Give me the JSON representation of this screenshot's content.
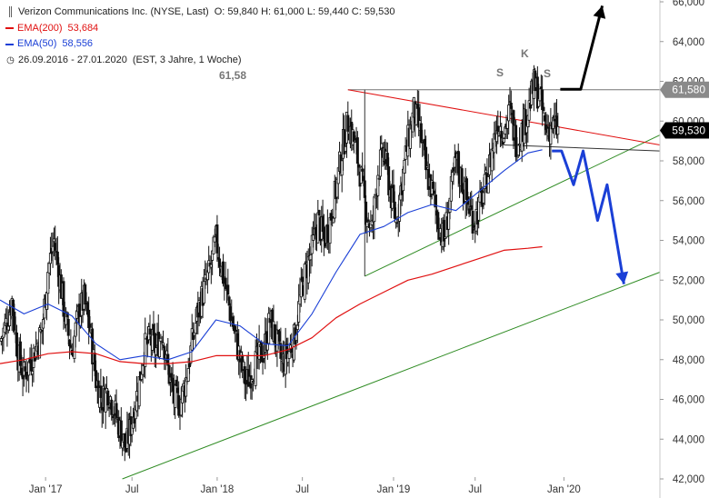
{
  "legend": {
    "title": "Verizon Communications Inc. (NYSE, Last)",
    "ohlc": "O: 59,840  H: 61,000  L: 59,440  C: 59,530",
    "ema200_label": "EMA(200)",
    "ema200_value": "53,684",
    "ema50_label": "EMA(50)",
    "ema50_value": "58,556",
    "range_label": "26.09.2016 - 27.01.2020",
    "range_detail": "(EST, 3 Jahre, 1 Woche)"
  },
  "annotations": {
    "high_label": "61,58",
    "left_shoulder": "S",
    "head": "K",
    "right_shoulder": "S"
  },
  "colors": {
    "candle": "#111111",
    "ema200": "#e01010",
    "ema50": "#1a3fd6",
    "trend_green": "#2e8b22",
    "forecast_blue": "#1a3fd6",
    "forecast_black": "#000000",
    "resistance": "#777777",
    "tag_grey": "#8a8a8a",
    "tag_black": "#000000"
  },
  "chart_data": {
    "type": "candlestick",
    "ylim": [
      42,
      66
    ],
    "y_ticks": [
      "66,000",
      "64,000",
      "62,000",
      "60,000",
      "58,000",
      "56,000",
      "54,000",
      "52,000",
      "50,000",
      "48,000",
      "46,000",
      "44,000",
      "42,000"
    ],
    "x_ticks": [
      "Jan '17",
      "Jul",
      "Jan '18",
      "Jul",
      "Jan '19",
      "Jul",
      "Jan '20"
    ],
    "price_tags": [
      {
        "label": "61,580",
        "value": 61.58,
        "style": "grey"
      },
      {
        "label": "59,530",
        "value": 59.53,
        "style": "black"
      }
    ],
    "series": [
      {
        "name": "Close",
        "points": [
          [
            0,
            48.9
          ],
          [
            0.25,
            49.8
          ],
          [
            0.5,
            51.0
          ],
          [
            0.75,
            48.2
          ],
          [
            1,
            47.2
          ],
          [
            1.25,
            47.9
          ],
          [
            1.5,
            48.6
          ],
          [
            1.75,
            49.5
          ],
          [
            2,
            52.5
          ],
          [
            2.25,
            54.0
          ],
          [
            2.5,
            52.0
          ],
          [
            2.75,
            49.8
          ],
          [
            3,
            48.4
          ],
          [
            3.25,
            50.2
          ],
          [
            3.5,
            51.0
          ],
          [
            3.75,
            49.5
          ],
          [
            4,
            47.0
          ],
          [
            4.25,
            46.0
          ],
          [
            4.5,
            46.5
          ],
          [
            4.75,
            45.5
          ],
          [
            5,
            44.5
          ],
          [
            5.25,
            43.5
          ],
          [
            5.5,
            45.0
          ],
          [
            5.75,
            46.5
          ],
          [
            6,
            48.5
          ],
          [
            6.25,
            49.0
          ],
          [
            6.5,
            48.5
          ],
          [
            6.75,
            49.5
          ],
          [
            7,
            47.5
          ],
          [
            7.25,
            46.0
          ],
          [
            7.5,
            45.8
          ],
          [
            7.75,
            47.0
          ],
          [
            8,
            48.8
          ],
          [
            8.25,
            50.5
          ],
          [
            8.5,
            51.5
          ],
          [
            8.75,
            52.5
          ],
          [
            9,
            54.0
          ],
          [
            9.25,
            52.5
          ],
          [
            9.5,
            51.0
          ],
          [
            9.75,
            49.5
          ],
          [
            10,
            48.0
          ],
          [
            10.25,
            46.8
          ],
          [
            10.5,
            47.5
          ],
          [
            10.75,
            48.0
          ],
          [
            11,
            48.5
          ],
          [
            11.25,
            50.0
          ],
          [
            11.5,
            49.0
          ],
          [
            11.75,
            47.8
          ],
          [
            12,
            48.3
          ],
          [
            12.25,
            49.0
          ],
          [
            12.5,
            51.0
          ],
          [
            12.75,
            52.5
          ],
          [
            13,
            53.5
          ],
          [
            13.25,
            55.0
          ],
          [
            13.5,
            54.0
          ],
          [
            13.75,
            55.0
          ],
          [
            14,
            56.5
          ],
          [
            14.25,
            58.5
          ],
          [
            14.5,
            60.0
          ],
          [
            14.75,
            59.0
          ],
          [
            15,
            57.5
          ],
          [
            15.25,
            55.5
          ],
          [
            15.5,
            54.5
          ],
          [
            15.75,
            57.5
          ],
          [
            16,
            58.5
          ],
          [
            16.25,
            56.5
          ],
          [
            16.5,
            55.0
          ],
          [
            16.75,
            57.0
          ],
          [
            17,
            59.0
          ],
          [
            17.25,
            60.5
          ],
          [
            17.5,
            59.5
          ],
          [
            17.75,
            57.5
          ],
          [
            18,
            56.5
          ],
          [
            18.25,
            55.0
          ],
          [
            18.5,
            54.0
          ],
          [
            18.75,
            56.0
          ],
          [
            19,
            58.0
          ],
          [
            19.25,
            57.0
          ],
          [
            19.5,
            55.8
          ],
          [
            19.75,
            55.0
          ],
          [
            20,
            55.8
          ],
          [
            20.25,
            56.8
          ],
          [
            20.5,
            58.5
          ],
          [
            20.75,
            60.0
          ],
          [
            21,
            59.5
          ],
          [
            21.25,
            60.5
          ],
          [
            21.5,
            59.0
          ],
          [
            21.75,
            59.5
          ],
          [
            22,
            60.5
          ],
          [
            22.25,
            61.8
          ],
          [
            22.5,
            61.2
          ],
          [
            22.75,
            59.5
          ],
          [
            23,
            59.8
          ],
          [
            23.25,
            59.53
          ]
        ]
      },
      {
        "name": "EMA(200)",
        "points": [
          [
            0,
            47.8
          ],
          [
            1,
            48.0
          ],
          [
            2,
            48.3
          ],
          [
            3,
            48.4
          ],
          [
            4,
            48.3
          ],
          [
            5,
            47.9
          ],
          [
            6,
            47.8
          ],
          [
            7,
            47.8
          ],
          [
            8,
            47.9
          ],
          [
            9,
            48.2
          ],
          [
            10,
            48.2
          ],
          [
            11,
            48.2
          ],
          [
            12,
            48.5
          ],
          [
            13,
            49.1
          ],
          [
            14,
            50.1
          ],
          [
            15,
            50.8
          ],
          [
            16,
            51.4
          ],
          [
            17,
            52.0
          ],
          [
            18,
            52.3
          ],
          [
            19,
            52.7
          ],
          [
            20,
            53.1
          ],
          [
            21,
            53.5
          ],
          [
            22,
            53.6
          ],
          [
            22.6,
            53.68
          ]
        ]
      },
      {
        "name": "EMA(50)",
        "points": [
          [
            0,
            51.0
          ],
          [
            1,
            50.3
          ],
          [
            2,
            50.8
          ],
          [
            3,
            50.2
          ],
          [
            4,
            48.8
          ],
          [
            5,
            48.0
          ],
          [
            6,
            48.2
          ],
          [
            7,
            48.0
          ],
          [
            8,
            48.4
          ],
          [
            9,
            50.0
          ],
          [
            10,
            49.7
          ],
          [
            11,
            48.8
          ],
          [
            12,
            48.7
          ],
          [
            13,
            50.3
          ],
          [
            14,
            52.4
          ],
          [
            15,
            54.3
          ],
          [
            16,
            54.7
          ],
          [
            17,
            55.4
          ],
          [
            18,
            55.8
          ],
          [
            19,
            55.5
          ],
          [
            20,
            56.5
          ],
          [
            21,
            57.5
          ],
          [
            22,
            58.4
          ],
          [
            22.6,
            58.556
          ]
        ]
      },
      {
        "name": "Resistance",
        "points": [
          [
            14.5,
            61.58
          ],
          [
            27.5,
            61.58
          ]
        ]
      },
      {
        "name": "Upper trend",
        "points": [
          [
            14.5,
            61.58
          ],
          [
            27.5,
            58.8
          ]
        ]
      },
      {
        "name": "Neckline",
        "points": [
          [
            21.0,
            58.8
          ],
          [
            27.5,
            58.5
          ]
        ]
      },
      {
        "name": "Support 1",
        "points": [
          [
            15.2,
            52.2
          ],
          [
            27.5,
            59.3
          ]
        ]
      },
      {
        "name": "Support 2",
        "points": [
          [
            5.1,
            42.0
          ],
          [
            27.5,
            52.4
          ]
        ]
      },
      {
        "name": "Forecast bullish",
        "points": [
          [
            23.35,
            61.6
          ],
          [
            24.2,
            61.6
          ],
          [
            25.1,
            65.8
          ]
        ]
      },
      {
        "name": "Forecast bearish",
        "points": [
          [
            23.0,
            58.5
          ],
          [
            23.4,
            58.5
          ],
          [
            23.9,
            56.8
          ],
          [
            24.3,
            58.5
          ],
          [
            24.9,
            55.0
          ],
          [
            25.3,
            56.8
          ],
          [
            26.0,
            51.8
          ]
        ]
      }
    ]
  }
}
